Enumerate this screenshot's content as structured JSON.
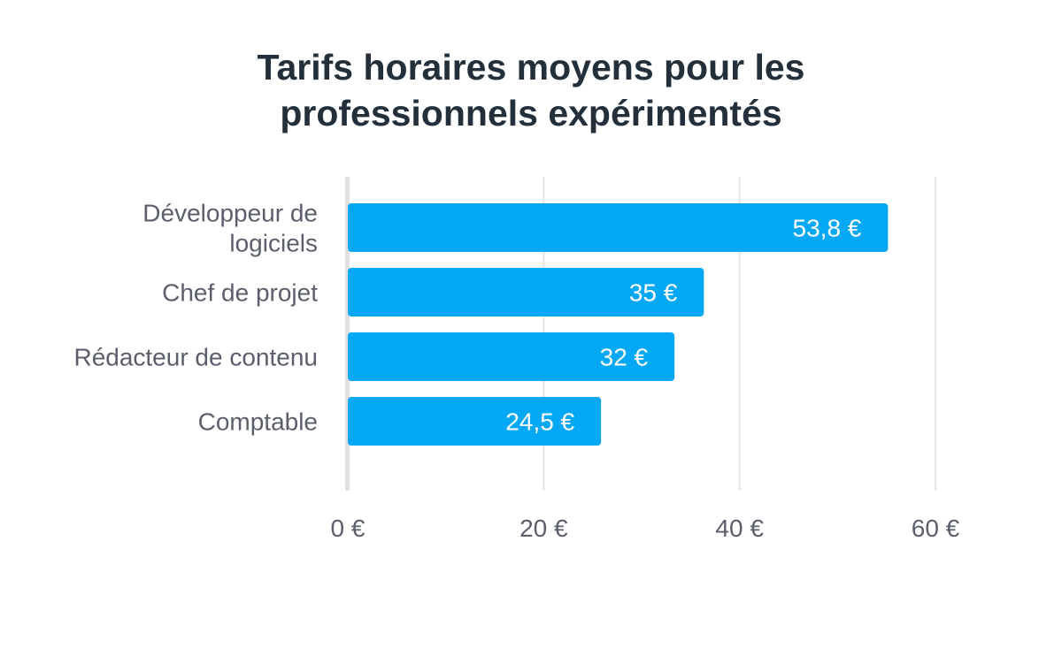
{
  "chart_data": {
    "type": "bar",
    "orientation": "horizontal",
    "title": [
      "Tarifs horaires moyens pour les",
      "professionnels expérimentés"
    ],
    "categories": [
      [
        "Développeur de",
        "logiciels"
      ],
      [
        "Chef de projet"
      ],
      [
        "Rédacteur de contenu"
      ],
      [
        "Comptable"
      ]
    ],
    "values": [
      53.8,
      35,
      32,
      24.5
    ],
    "data_labels": [
      "53,8 €",
      "35 €",
      "32 €",
      "24,5 €"
    ],
    "xlim": [
      0,
      60
    ],
    "x_ticks": [
      0,
      20,
      40,
      60
    ],
    "x_tick_labels": [
      "0 €",
      "20 €",
      "40 €",
      "60 €"
    ],
    "xlabel": "",
    "ylabel": "",
    "grid": true,
    "colors": {
      "bar": "#05a8f5",
      "title": "#23303b",
      "label": "#5b5f6b",
      "grid": "#e4e4e4",
      "axis": "#e0e0e0",
      "data_label": "#ffffff"
    }
  }
}
